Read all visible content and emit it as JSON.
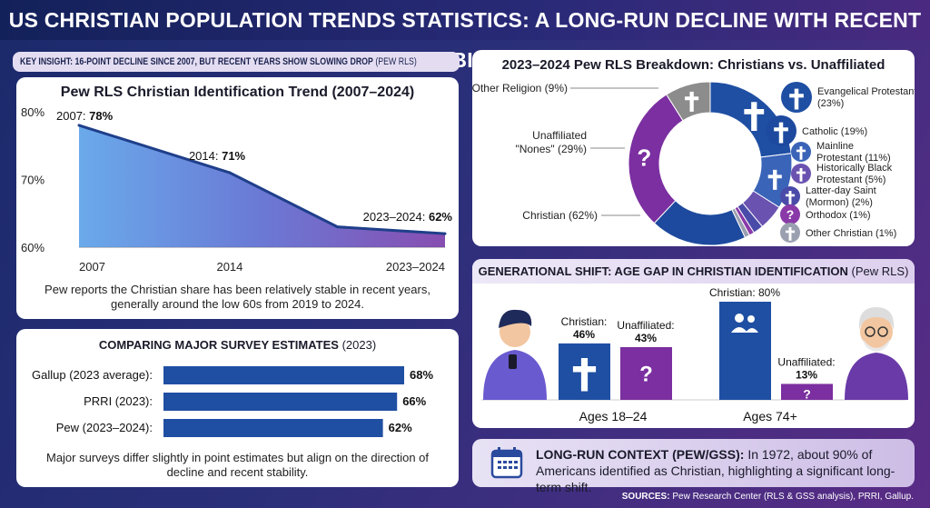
{
  "title": "US CHRISTIAN POPULATION TRENDS STATISTICS: A LONG-RUN DECLINE WITH RECENT STABILITY",
  "key_insight": {
    "text": "KEY INSIGHT: 16-POINT DECLINE SINCE 2007, BUT RECENT YEARS SHOW SLOWING DROP",
    "source": "(PEW RLS)"
  },
  "trend_caption": "Pew reports the Christian share has been relatively stable in recent years, generally around the low 60s from 2019 to 2024.",
  "survey_caption": "Major surveys differ slightly in point estimates but align on the direction of decline and recent stability.",
  "context": {
    "label": "LONG-RUN CONTEXT (PEW/GSS):",
    "text": "In 1972, about 90% of Americans identified as Christian, highlighting a significant long-term shift."
  },
  "sources": {
    "label": "SOURCES:",
    "text": "Pew Research Center (RLS & GSS analysis), PRRI, Gallup."
  },
  "colors": {
    "blue": "#1f4fa3",
    "purple": "#7b2fa0",
    "gray": "#8c8c8c",
    "line": "#1f3f8a"
  },
  "chart_data": [
    {
      "type": "area",
      "title": "Pew RLS Christian Identification Trend (2007–2024)",
      "x": [
        2007,
        2014,
        2019,
        2024
      ],
      "y": [
        78,
        71,
        63,
        62
      ],
      "xticks": [
        "2007",
        "2014",
        "2023–2024"
      ],
      "yticks": [
        "80%",
        "70%",
        "60%"
      ],
      "ylim": [
        60,
        80
      ],
      "labels": [
        {
          "year": "2007:",
          "value": "78%"
        },
        {
          "year": "2014:",
          "value": "71%"
        },
        {
          "year": "2023–2024:",
          "value": "62%"
        }
      ]
    },
    {
      "type": "pie",
      "title": "2023–2024 Pew RLS Breakdown: Christians vs. Unaffiliated",
      "slices": [
        {
          "label": "Evangelical Protestant",
          "pct": "(23%)",
          "value": 23,
          "color": "#1f4fa3",
          "icon": "cross-icon"
        },
        {
          "label": "Mainline Protestant",
          "pct": "(11%)",
          "value": 11,
          "color": "#3a64b8",
          "icon": "cross-icon"
        },
        {
          "label": "Historically Black Protestant",
          "pct": "(5%)",
          "value": 5,
          "color": "#6a52b0",
          "icon": "people-icon"
        },
        {
          "label": "Latter-day Saint (Mormon)",
          "pct": "(2%)",
          "value": 2,
          "color": "#4a4aa8",
          "icon": "cross-icon"
        },
        {
          "label": "Orthodox",
          "pct": "(1%)",
          "value": 1,
          "color": "#8a3aa8",
          "icon": "question-icon"
        },
        {
          "label": "Other Christian",
          "pct": "(1%)",
          "value": 1,
          "color": "#9aa0b0",
          "icon": "cross-icon"
        },
        {
          "label": "Catholic",
          "pct": "(19%)",
          "value": 19,
          "color": "#1d4a9e",
          "icon": "church-icon"
        },
        {
          "label": "Unaffiliated \"Nones\"",
          "pct": "(29%)",
          "value": 29,
          "color": "#7b2fa0",
          "icon": "question-icon"
        },
        {
          "label": "Other Religion",
          "pct": "(9%)",
          "value": 9,
          "color": "#8c8c8c",
          "icon": "cross-icon"
        }
      ],
      "total_label": "Christian",
      "total_pct": "(62%)"
    },
    {
      "type": "bar",
      "title": "COMPARING MAJOR SURVEY ESTIMATES",
      "title_note": "(2023)",
      "categories": [
        "Gallup (2023 average):",
        "PRRI (2023):",
        "Pew (2023–2024):"
      ],
      "values": [
        68,
        66,
        62
      ],
      "value_labels": [
        "68%",
        "66%",
        "62%"
      ]
    },
    {
      "type": "bar",
      "title": "GENERATIONAL SHIFT: AGE GAP IN CHRISTIAN IDENTIFICATION",
      "title_note": "(Pew RLS)",
      "categories": [
        "Ages 18–24",
        "Ages 74+"
      ],
      "series": [
        {
          "name": "Christian:",
          "values": [
            46,
            80
          ],
          "labels": [
            "46%",
            "80%"
          ]
        },
        {
          "name": "Unaffiliated:",
          "values": [
            43,
            13
          ],
          "labels": [
            "43%",
            "13%"
          ]
        }
      ]
    }
  ]
}
